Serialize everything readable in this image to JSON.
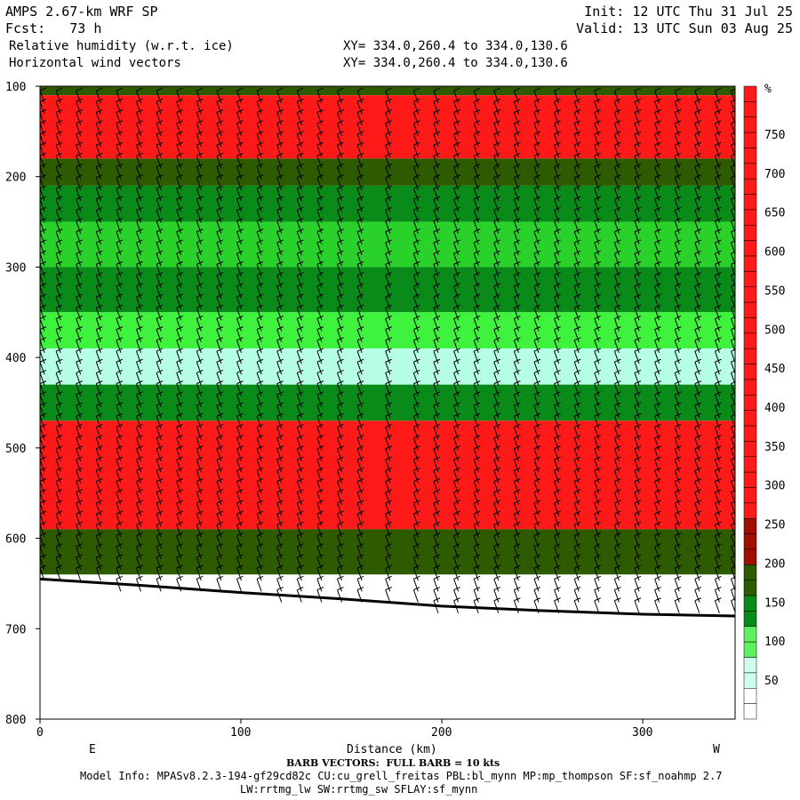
{
  "header": {
    "model_title": "AMPS 2.67-km WRF SP",
    "forecast": "Fcst:   73 h",
    "init": "Init: 12 UTC Thu 31 Jul 25",
    "valid": "Valid: 13 UTC Sun 03 Aug 25",
    "field1": "Relative humidity (w.r.t. ice)",
    "field2": "Horizontal wind vectors",
    "xy1": "XY= 334.0,260.4 to 334.0,130.6",
    "xy2": "XY= 334.0,260.4 to 334.0,130.6"
  },
  "footer": {
    "barb_note": "BARB VECTORS:  FULL BARB = 10 kts",
    "model_info": "Model Info: MPASv8.2.3-194-gf29cd82c CU:cu_grell_freitas PBL:bl_mynn MP:mp_thompson SF:sf_noahmp 2.7",
    "model_info2": "LW:rrtmg_lw SW:rrtmg_sw SFLAY:sf_mynn"
  },
  "chart_data": {
    "type": "heatmap",
    "title": "Relative humidity (w.r.t. ice)",
    "xlabel": "Distance (km)",
    "ylabel": "",
    "x_left_label": "E",
    "x_right_label": "W",
    "xlim": [
      0,
      346
    ],
    "ylim": [
      800,
      100
    ],
    "x_ticks": [
      0,
      100,
      200,
      300
    ],
    "y_ticks": [
      100,
      200,
      300,
      400,
      500,
      600,
      700,
      800
    ],
    "colorbar": {
      "unit_label": "%",
      "tick_labels": [
        50,
        100,
        150,
        200,
        250,
        300,
        350,
        400,
        450,
        500,
        550,
        600,
        650,
        700,
        750
      ]
    },
    "layers_pressure_hpa": [
      {
        "top": 100,
        "bottom": 110,
        "rh_class": "dark-green"
      },
      {
        "top": 110,
        "bottom": 180,
        "rh_class": "red"
      },
      {
        "top": 180,
        "bottom": 210,
        "rh_class": "dark-green"
      },
      {
        "top": 210,
        "bottom": 250,
        "rh_class": "green"
      },
      {
        "top": 250,
        "bottom": 300,
        "rh_class": "light-green"
      },
      {
        "top": 300,
        "bottom": 350,
        "rh_class": "green"
      },
      {
        "top": 350,
        "bottom": 390,
        "rh_class": "bright-green"
      },
      {
        "top": 390,
        "bottom": 430,
        "rh_class": "cyan"
      },
      {
        "top": 430,
        "bottom": 470,
        "rh_class": "green"
      },
      {
        "top": 470,
        "bottom": 590,
        "rh_class": "red"
      },
      {
        "top": 590,
        "bottom": 640,
        "rh_class": "dark-green"
      }
    ],
    "terrain_pressure_hpa": {
      "x": [
        0,
        50,
        100,
        150,
        200,
        250,
        300,
        346
      ],
      "p": [
        645,
        652,
        660,
        667,
        675,
        680,
        684,
        686
      ]
    },
    "barb_columns_km": [
      0,
      8,
      18,
      28,
      38,
      48,
      58,
      68,
      78,
      88,
      98,
      108,
      118,
      128,
      138,
      148,
      158,
      172,
      186,
      196,
      206,
      216,
      226,
      236,
      246,
      256,
      266,
      276,
      286,
      296,
      306,
      316,
      326,
      336,
      344
    ]
  }
}
